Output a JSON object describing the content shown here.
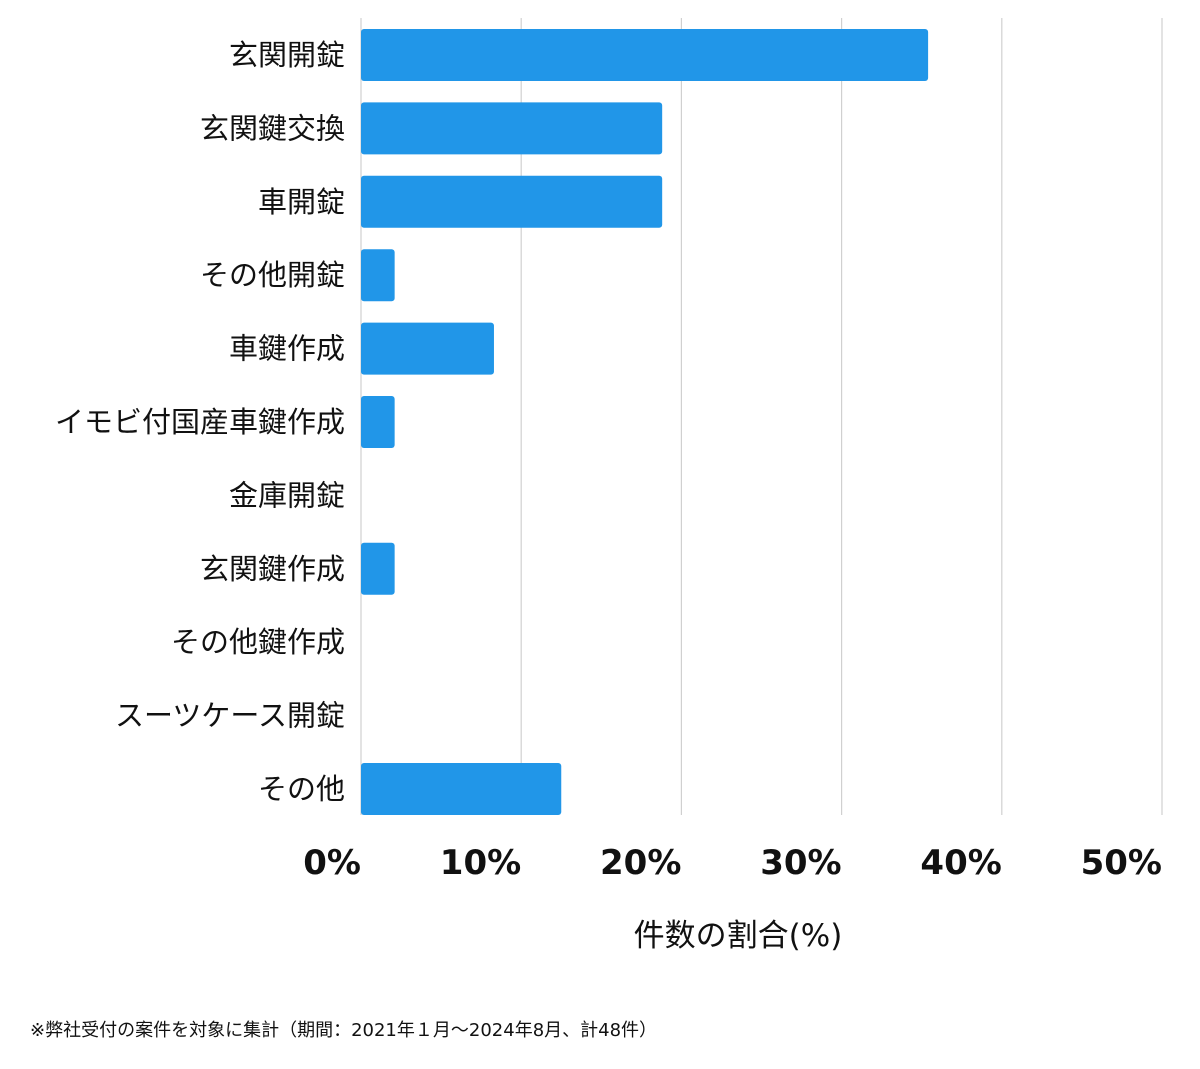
{
  "chart_data": {
    "type": "bar",
    "orientation": "horizontal",
    "categories": [
      "玄関開錠",
      "玄関鍵交換",
      "車開錠",
      "その他開錠",
      "車鍵作成",
      "イモビ付国産車鍵作成",
      "金庫開錠",
      "玄関鍵作成",
      "その他鍵作成",
      "スーツケース開錠",
      "その他"
    ],
    "values": [
      35.4,
      18.8,
      18.8,
      2.1,
      8.3,
      2.1,
      0,
      2.1,
      0,
      0,
      12.5
    ],
    "xlabel": "件数の割合(%)",
    "ylabel": "",
    "xlim": [
      0,
      50
    ],
    "xticks": [
      "0%",
      "10%",
      "20%",
      "30%",
      "40%",
      "50%"
    ],
    "grid": "vertical",
    "bar_color": "#2196E8",
    "footnote": "※弊社受付の案件を対象に集計（期間：2021年１月〜2024年8月、計48件）"
  }
}
